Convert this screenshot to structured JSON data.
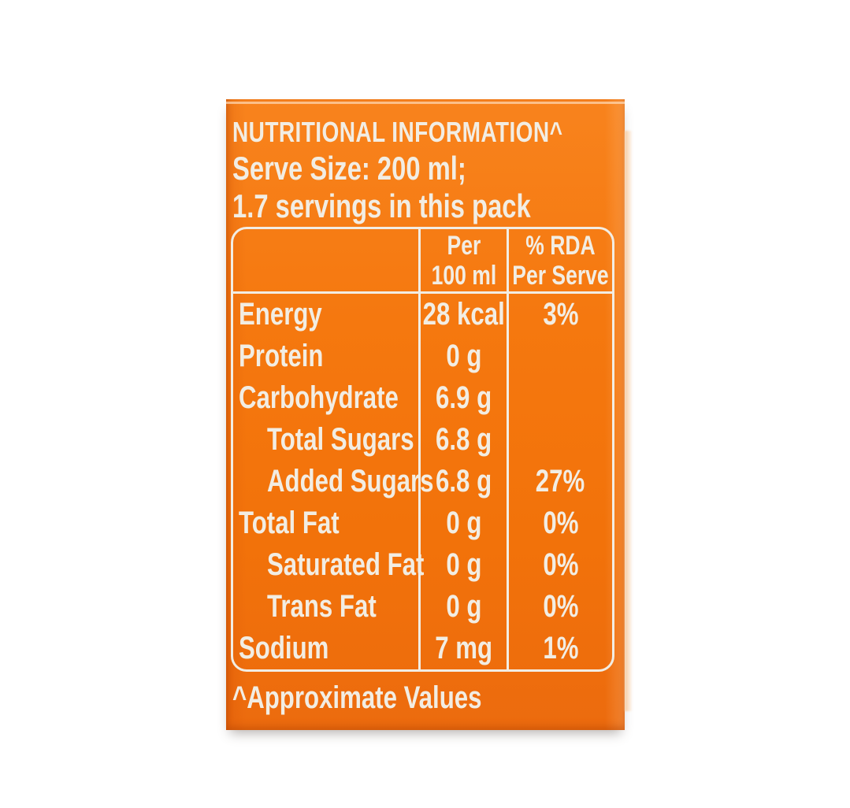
{
  "page": {
    "background_color": "#ffffff"
  },
  "label": {
    "colors": {
      "panel_orange": "#F47510",
      "text_offwhite": "#F2EDE3"
    },
    "title": "NUTRITIONAL INFORMATION^",
    "serve_size_line": "Serve Size: 200 ml;",
    "servings_line": "1.7 servings in this pack",
    "footnote": "^Approximate Values",
    "table": {
      "col_headers": {
        "per_100ml": [
          "Per",
          "100 ml"
        ],
        "rda_per_serve": [
          "% RDA",
          "Per Serve"
        ]
      },
      "rows": [
        {
          "name": "Energy",
          "per_100ml": "28 kcal",
          "rda": "3%"
        },
        {
          "name": "Protein",
          "per_100ml": "0 g",
          "rda": ""
        },
        {
          "name": "Carbohydrate",
          "per_100ml": "6.9 g",
          "rda": ""
        },
        {
          "name": "Total Sugars",
          "per_100ml": "6.8 g",
          "rda": ""
        },
        {
          "name": "Added Sugars",
          "per_100ml": "6.8 g",
          "rda": "27%"
        },
        {
          "name": "Total Fat",
          "per_100ml": "0 g",
          "rda": "0%"
        },
        {
          "name": "Saturated Fat",
          "per_100ml": "0 g",
          "rda": "0%"
        },
        {
          "name": "Trans Fat",
          "per_100ml": "0 g",
          "rda": "0%"
        },
        {
          "name": "Sodium",
          "per_100ml": "7 mg",
          "rda": "1%"
        }
      ]
    }
  }
}
